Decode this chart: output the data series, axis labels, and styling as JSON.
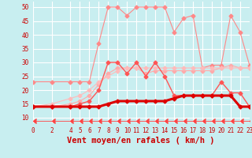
{
  "x": [
    0,
    2,
    4,
    5,
    6,
    7,
    8,
    9,
    10,
    11,
    12,
    13,
    14,
    15,
    16,
    17,
    18,
    19,
    20,
    21,
    22,
    23
  ],
  "series": [
    {
      "name": "line1_salmon_jagged",
      "color": "#ff8888",
      "lw": 0.8,
      "marker": "D",
      "markersize": 2.5,
      "values": [
        23,
        23,
        23,
        23,
        23,
        37,
        50,
        50,
        47,
        50,
        50,
        50,
        50,
        41,
        46,
        47,
        28,
        29,
        29,
        47,
        41,
        29
      ]
    },
    {
      "name": "line2_salmon_rising",
      "color": "#ffaaaa",
      "lw": 0.8,
      "marker": "D",
      "markersize": 2.5,
      "values": [
        14,
        14,
        15,
        16,
        18,
        22,
        26,
        28,
        28,
        28,
        26,
        27,
        27,
        27,
        27,
        27,
        27,
        27,
        28,
        29,
        28,
        28
      ]
    },
    {
      "name": "line3_light_linear",
      "color": "#ffbbbb",
      "lw": 0.8,
      "marker": "D",
      "markersize": 2.5,
      "values": [
        14,
        15,
        17,
        18,
        20,
        23,
        25,
        27,
        28,
        28,
        28,
        28,
        28,
        28,
        28,
        28,
        28,
        28,
        28,
        28,
        28,
        28
      ]
    },
    {
      "name": "line4_medium_red",
      "color": "#ff5555",
      "lw": 1.0,
      "marker": "D",
      "markersize": 2.5,
      "values": [
        14,
        14,
        14,
        15,
        16,
        20,
        30,
        30,
        26,
        30,
        25,
        30,
        25,
        18,
        18,
        18,
        18,
        18,
        23,
        19,
        19,
        14
      ]
    },
    {
      "name": "line5_bold_dark",
      "color": "#dd0000",
      "lw": 2.2,
      "marker": "D",
      "markersize": 2.5,
      "values": [
        14,
        14,
        14,
        14,
        14,
        14,
        15,
        16,
        16,
        16,
        16,
        16,
        16,
        17,
        18,
        18,
        18,
        18,
        18,
        18,
        14,
        14
      ]
    },
    {
      "name": "arrows_row",
      "color": "#ff4444",
      "lw": 0.6,
      "marker": 4,
      "markersize": 4,
      "values": [
        9,
        9,
        9,
        9,
        9,
        9,
        9,
        9,
        9,
        9,
        9,
        9,
        9,
        9,
        9,
        9,
        9,
        9,
        9,
        9,
        9,
        9
      ]
    }
  ],
  "xlabel": "Vent moyen/en rafales ( km/h )",
  "xlim": [
    0,
    23
  ],
  "ylim": [
    8,
    52
  ],
  "yticks": [
    10,
    15,
    20,
    25,
    30,
    35,
    40,
    45,
    50
  ],
  "xticks": [
    0,
    2,
    4,
    5,
    6,
    7,
    8,
    9,
    10,
    11,
    12,
    13,
    14,
    15,
    16,
    17,
    18,
    19,
    20,
    21,
    22,
    23
  ],
  "bg_color": "#c8eef0",
  "grid_color": "#ffffff",
  "tick_color": "#cc0000",
  "xlabel_color": "#cc0000",
  "xlabel_fontsize": 7.5,
  "tick_fontsize": 5.5
}
